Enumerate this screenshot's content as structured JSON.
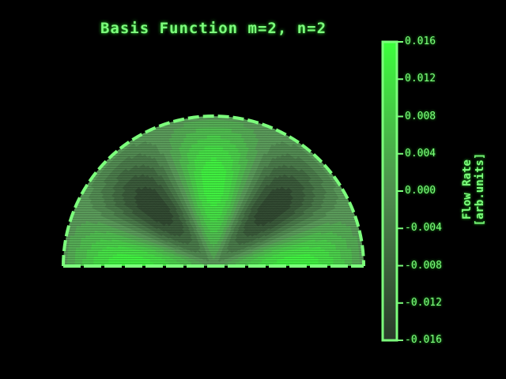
{
  "chart_data": {
    "type": "heatmap",
    "title": "Basis Function m=2, n=2",
    "domain": "half-disk",
    "colorbar": {
      "label": "Flow Rate [arb.units]",
      "range": [
        -0.016,
        0.016
      ],
      "tick_values": [
        0.016,
        0.012,
        0.008,
        0.004,
        0.0,
        -0.004,
        -0.008,
        -0.012,
        -0.016
      ],
      "tick_labels": [
        "0.016",
        "0.012",
        "0.008",
        "0.004",
        "0.000",
        "-0.004",
        "-0.008",
        "-0.012",
        "-0.016"
      ]
    },
    "extrema": [
      {
        "angle_deg": 157.5,
        "radius_frac": 0.62,
        "value": 0.013
      },
      {
        "angle_deg": 112.5,
        "radius_frac": 0.62,
        "value": -0.011
      },
      {
        "angle_deg": 90,
        "radius_frac": 0.7,
        "value": 0.014
      },
      {
        "angle_deg": 67.5,
        "radius_frac": 0.62,
        "value": -0.011
      },
      {
        "angle_deg": 22.5,
        "radius_frac": 0.62,
        "value": 0.013
      }
    ],
    "colors": {
      "low": "#2a3a2a",
      "mid": "#5a9a5a",
      "high": "#3cff3c",
      "axis": "#7cff7c"
    }
  }
}
